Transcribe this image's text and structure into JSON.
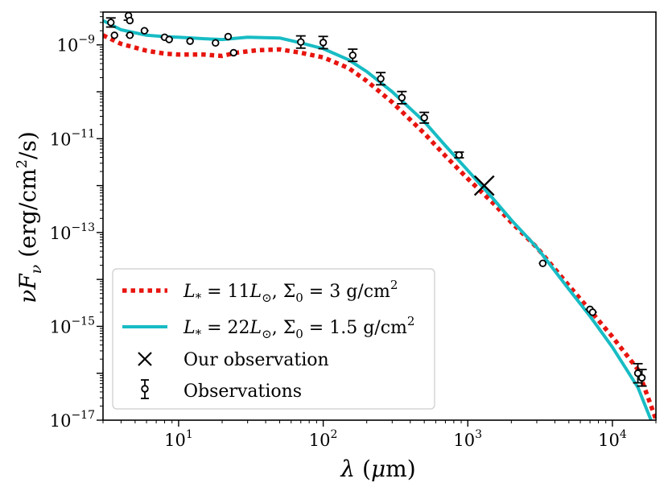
{
  "chart_data": {
    "type": "line",
    "xlabel": "λ (μm)",
    "ylabel": "νF_ν (erg/cm²/s)",
    "xscale": "log",
    "yscale": "log",
    "xlim": [
      3.0,
      20000
    ],
    "ylim": [
      1e-17,
      5e-09
    ],
    "x_ticks": [
      {
        "value": 10,
        "base": "10",
        "exp": "1"
      },
      {
        "value": 100,
        "base": "10",
        "exp": "2"
      },
      {
        "value": 1000,
        "base": "10",
        "exp": "3"
      },
      {
        "value": 10000,
        "base": "10",
        "exp": "4"
      }
    ],
    "y_ticks": [
      {
        "value": 1e-09,
        "base": "10",
        "exp": "−9"
      },
      {
        "value": 1e-11,
        "base": "10",
        "exp": "−11"
      },
      {
        "value": 1e-13,
        "base": "10",
        "exp": "−13"
      },
      {
        "value": 1e-15,
        "base": "10",
        "exp": "−15"
      },
      {
        "value": 1e-17,
        "base": "10",
        "exp": "−17"
      }
    ],
    "series": [
      {
        "name": "L* = 11 L⊙, Σ0 = 3 g/cm²",
        "style": "dotted",
        "color": "#e8140e",
        "x": [
          3.0,
          4,
          6,
          8,
          10,
          15,
          20,
          25,
          35,
          50,
          70,
          100,
          150,
          200,
          300,
          500,
          700,
          1000,
          1500,
          2000,
          3000,
          5000,
          7000,
          10000,
          15000,
          20000
        ],
        "y": [
          1.6e-09,
          1.05e-09,
          7.5e-10,
          6.5e-10,
          6.2e-10,
          6.2e-10,
          5.8e-10,
          6.8e-10,
          7.7e-10,
          8e-10,
          6.8e-10,
          5.4e-10,
          3.2e-10,
          1.7e-10,
          6e-11,
          1.3e-11,
          4.3e-12,
          1.4e-12,
          4.2e-13,
          1.65e-13,
          4.8e-14,
          7.4e-15,
          2.2e-15,
          6e-16,
          1.2e-16,
          1.05e-17
        ]
      },
      {
        "name": "L* = 22 L⊙, Σ0 = 1.5 g/cm²",
        "style": "solid",
        "color": "#17bcc4",
        "x": [
          3.0,
          4,
          6,
          8,
          10,
          15,
          20,
          30,
          50,
          70,
          100,
          150,
          200,
          300,
          500,
          700,
          1000,
          1500,
          2000,
          3000,
          5000,
          7000,
          10000,
          15000,
          18500
        ],
        "y": [
          3.3e-09,
          2.1e-09,
          1.6e-09,
          1.5e-09,
          1.45e-09,
          1.35e-09,
          1.3e-09,
          1.45e-09,
          1.4e-09,
          1.1e-09,
          8.3e-10,
          4.8e-10,
          2.7e-10,
          1e-10,
          2.3e-11,
          7.1e-12,
          2.1e-12,
          5.2e-13,
          1.85e-13,
          4.8e-14,
          6.2e-15,
          1.65e-15,
          3.6e-16,
          5e-17,
          1e-17
        ]
      }
    ],
    "our_observation": {
      "name": "Our observation",
      "x": 1300,
      "y": 1e-12
    },
    "observations": {
      "name": "Observations",
      "points": [
        {
          "x": 3.4,
          "y": 3e-09,
          "yerr_factor": 1.25
        },
        {
          "x": 3.6,
          "y": 1.6e-09,
          "xerr": [
            3.4,
            3.8
          ]
        },
        {
          "x": 4.5,
          "y": 4.2e-09,
          "yerr_factor": 1.25
        },
        {
          "x": 4.6,
          "y": 3.3e-09
        },
        {
          "x": 4.6,
          "y": 1.6e-09,
          "xerr": [
            4.3,
            4.9
          ]
        },
        {
          "x": 5.8,
          "y": 2e-09,
          "xerr": [
            5.5,
            6.2
          ]
        },
        {
          "x": 8.0,
          "y": 1.45e-09,
          "xerr": [
            7.5,
            8.6
          ]
        },
        {
          "x": 8.6,
          "y": 1.3e-09,
          "xerr": [
            8.1,
            9.1
          ]
        },
        {
          "x": 12.0,
          "y": 1.2e-09,
          "xerr": [
            11.3,
            12.7
          ]
        },
        {
          "x": 18.0,
          "y": 1.1e-09,
          "xerr": [
            17.0,
            19.0
          ]
        },
        {
          "x": 22.0,
          "y": 1.5e-09,
          "xerr": [
            20.8,
            23.2
          ]
        },
        {
          "x": 24.0,
          "y": 6.8e-10,
          "xerr": [
            22.7,
            25.3
          ]
        },
        {
          "x": 70.0,
          "y": 1.15e-09,
          "yerr_factor": 1.35
        },
        {
          "x": 100.0,
          "y": 1.12e-09,
          "yerr_factor": 1.35
        },
        {
          "x": 160.0,
          "y": 6e-10,
          "yerr_factor": 1.35
        },
        {
          "x": 250.0,
          "y": 1.9e-10,
          "yerr_factor": 1.35
        },
        {
          "x": 350.0,
          "y": 7.5e-11,
          "yerr_factor": 1.35
        },
        {
          "x": 500.0,
          "y": 2.8e-11,
          "yerr_factor": 1.3
        },
        {
          "x": 870.0,
          "y": 4.5e-12,
          "yerr_factor": 1.15
        },
        {
          "x": 3300.0,
          "y": 2.2e-14,
          "xerr": [
            3100,
            3500
          ]
        },
        {
          "x": 7000.0,
          "y": 2.3e-15,
          "xerr": [
            6500,
            7500
          ]
        },
        {
          "x": 7300.0,
          "y": 2e-15,
          "xerr": [
            6800,
            7800
          ]
        },
        {
          "x": 15000.0,
          "y": 1e-16,
          "yerr_factor": 1.6
        },
        {
          "x": 16000.0,
          "y": 8e-17,
          "yerr_factor": 1.5
        }
      ]
    },
    "legend": {
      "position": "lower-left",
      "entries": [
        {
          "lhs": "L",
          "sub": "*",
          "mid1": " = 11",
          "sym": "L",
          "symsub": "⊙",
          "rest": ", Σ",
          "rsub": "0",
          "tail": " = 3 g/cm",
          "sup": "2"
        },
        {
          "lhs": "L",
          "sub": "*",
          "mid1": " = 22",
          "sym": "L",
          "symsub": "⊙",
          "rest": ", Σ",
          "rsub": "0",
          "tail": " = 1.5 g/cm",
          "sup": "2"
        },
        {
          "label": "Our observation"
        },
        {
          "label": "Observations"
        }
      ]
    }
  }
}
